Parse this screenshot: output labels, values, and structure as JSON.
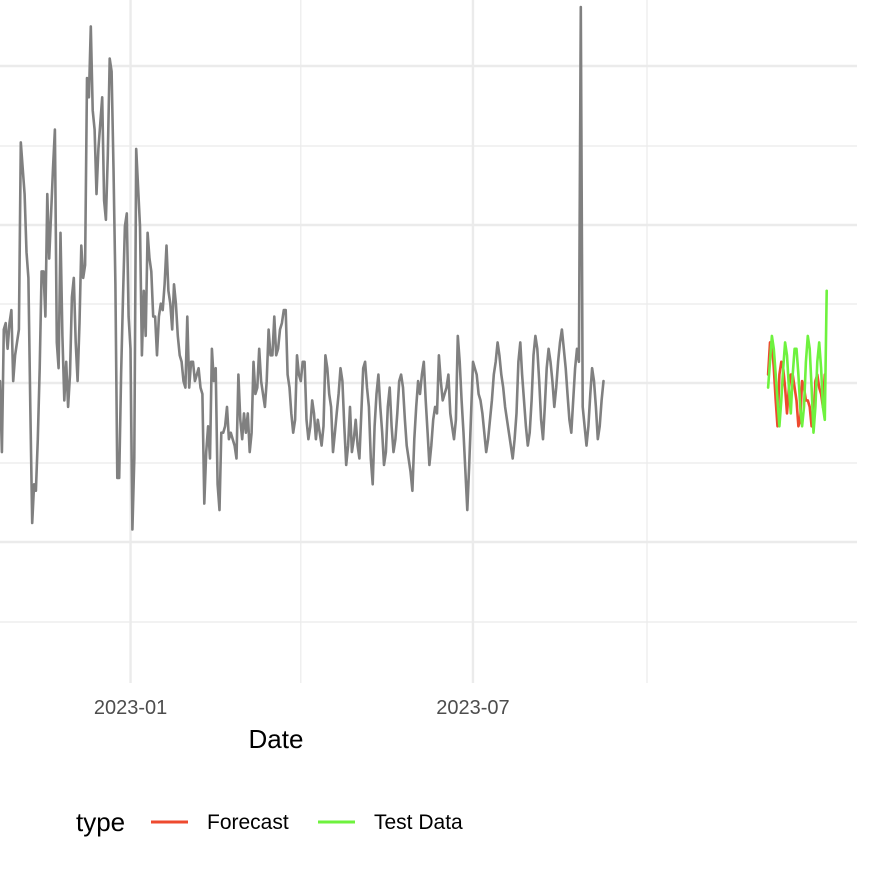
{
  "chart_data": {
    "type": "line",
    "title": "",
    "xlabel": "Date",
    "ylabel": "",
    "x_tick_labels": [
      "2023-01",
      "2023-07"
    ],
    "xlim": [
      "2022-10-24",
      "2024-01-20"
    ],
    "ylim": [
      0,
      10
    ],
    "grid": true,
    "legend": {
      "title": "type",
      "position": "bottom",
      "entries": [
        {
          "label": "Forecast",
          "color": "#ee4a2f"
        },
        {
          "label": "Test Data",
          "color": "#6ef23e"
        }
      ]
    },
    "series": [
      {
        "role": "history",
        "color": "#808080",
        "start_date": "2022-10-24",
        "values": [
          4.2,
          3.1,
          5.0,
          5.1,
          4.7,
          5.1,
          5.3,
          4.2,
          4.6,
          4.8,
          5.0,
          7.9,
          7.5,
          7.1,
          6.2,
          5.8,
          3.8,
          2.0,
          2.6,
          2.5,
          3.3,
          4.4,
          5.9,
          5.9,
          5.2,
          7.1,
          6.1,
          6.8,
          7.5,
          8.1,
          4.8,
          4.4,
          6.5,
          4.9,
          3.9,
          4.5,
          3.8,
          4.3,
          5.5,
          5.8,
          4.8,
          4.2,
          5.1,
          6.3,
          5.8,
          6.0,
          8.9,
          8.6,
          9.7,
          8.4,
          8.1,
          7.1,
          7.8,
          8.2,
          8.6,
          7.0,
          6.7,
          7.7,
          9.2,
          9.0,
          7.5,
          5.7,
          2.7,
          2.7,
          4.3,
          5.5,
          6.6,
          6.8,
          5.2,
          4.7,
          1.9,
          3.0,
          7.8,
          7.2,
          6.6,
          4.6,
          5.6,
          4.9,
          6.5,
          6.1,
          5.9,
          5.2,
          5.2,
          4.6,
          5.2,
          5.4,
          5.3,
          5.7,
          6.3,
          5.6,
          5.4,
          5.0,
          5.7,
          5.4,
          4.9,
          4.6,
          4.5,
          4.2,
          4.1,
          5.2,
          4.1,
          4.5,
          4.5,
          4.2,
          4.3,
          4.4,
          4.1,
          4.0,
          2.3,
          3.1,
          3.5,
          3.0,
          4.7,
          4.2,
          4.4,
          2.6,
          2.2,
          3.4,
          3.4,
          3.5,
          3.8,
          3.3,
          3.4,
          3.3,
          3.2,
          3.0,
          4.3,
          3.6,
          3.3,
          3.7,
          3.4,
          3.7,
          3.1,
          3.4,
          4.5,
          4.0,
          4.1,
          4.7,
          4.2,
          4.0,
          3.8,
          4.2,
          5.0,
          4.6,
          4.6,
          5.2,
          4.6,
          4.7,
          5.0,
          5.1,
          5.3,
          5.3,
          4.3,
          4.1,
          3.7,
          3.4,
          3.6,
          4.6,
          4.3,
          4.2,
          4.5,
          4.5,
          3.6,
          3.3,
          3.5,
          3.9,
          3.7,
          3.3,
          3.6,
          3.4,
          3.2,
          3.5,
          4.6,
          4.4,
          4.0,
          3.8,
          3.1,
          3.4,
          3.7,
          4.0,
          4.4,
          4.2,
          3.5,
          2.9,
          3.2,
          3.8,
          3.1,
          3.3,
          3.6,
          3.2,
          3.0,
          3.7,
          4.4,
          4.5,
          4.1,
          3.8,
          3.0,
          2.6,
          3.5,
          4.0,
          4.3,
          3.8,
          3.4,
          2.9,
          3.1,
          3.8,
          4.1,
          3.5,
          3.1,
          3.3,
          3.7,
          4.2,
          4.3,
          4.1,
          3.6,
          3.2,
          3.0,
          2.8,
          2.5,
          3.3,
          3.8,
          4.2,
          4.0,
          4.3,
          4.5,
          3.9,
          3.4,
          2.9,
          3.2,
          3.6,
          3.8,
          3.7,
          4.6,
          4.2,
          3.9,
          4.0,
          4.1,
          4.3,
          3.7,
          3.5,
          3.3,
          3.6,
          4.9,
          4.5,
          3.9,
          3.4,
          2.8,
          2.2,
          2.9,
          3.7,
          4.5,
          4.4,
          4.3,
          4.0,
          3.9,
          3.7,
          3.4,
          3.1,
          3.3,
          3.6,
          3.9,
          4.3,
          4.5,
          4.8,
          4.6,
          4.3,
          4.1,
          3.8,
          3.6,
          3.4,
          3.2,
          3.0,
          3.3,
          3.7,
          4.5,
          4.8,
          4.3,
          3.9,
          3.5,
          3.2,
          3.4,
          3.9,
          4.6,
          4.9,
          4.7,
          4.2,
          3.6,
          3.3,
          3.8,
          4.4,
          4.7,
          4.5,
          4.2,
          3.8,
          4.1,
          4.5,
          4.8,
          5.0,
          4.7,
          4.4,
          4.0,
          3.6,
          3.4,
          3.9,
          4.4,
          4.7,
          4.5,
          4.1,
          3.8,
          3.5,
          3.2,
          3.5,
          4.0,
          4.4,
          4.2,
          3.8,
          3.3,
          3.5,
          3.9,
          4.2
        ],
        "spikes": [
          {
            "date": "2023-08-27",
            "value": 10.0
          }
        ]
      },
      {
        "name": "Forecast",
        "color": "#ee4a2f",
        "start_date": "2023-12-04",
        "values": [
          4.3,
          4.8,
          4.8,
          4.4,
          3.9,
          3.5,
          4.3,
          4.5,
          4.4,
          4.1,
          3.7,
          4.1,
          4.3,
          4.3,
          4.1,
          3.9,
          3.5,
          3.6,
          4.2,
          4.1,
          3.9,
          3.9,
          3.8,
          3.5,
          3.5,
          4.2,
          4.3,
          4.1,
          4.0,
          3.8,
          4.3
        ]
      },
      {
        "name": "Test Data",
        "color": "#6ef23e",
        "start_date": "2023-12-04",
        "values": [
          4.1,
          4.5,
          4.9,
          4.7,
          4.3,
          3.9,
          3.5,
          3.9,
          4.4,
          4.8,
          4.6,
          4.1,
          3.7,
          4.3,
          4.7,
          4.7,
          4.3,
          3.8,
          3.5,
          3.8,
          4.5,
          4.9,
          4.7,
          4.1,
          3.4,
          3.8,
          4.5,
          4.8,
          4.4,
          3.8,
          3.6,
          5.6
        ]
      }
    ]
  }
}
